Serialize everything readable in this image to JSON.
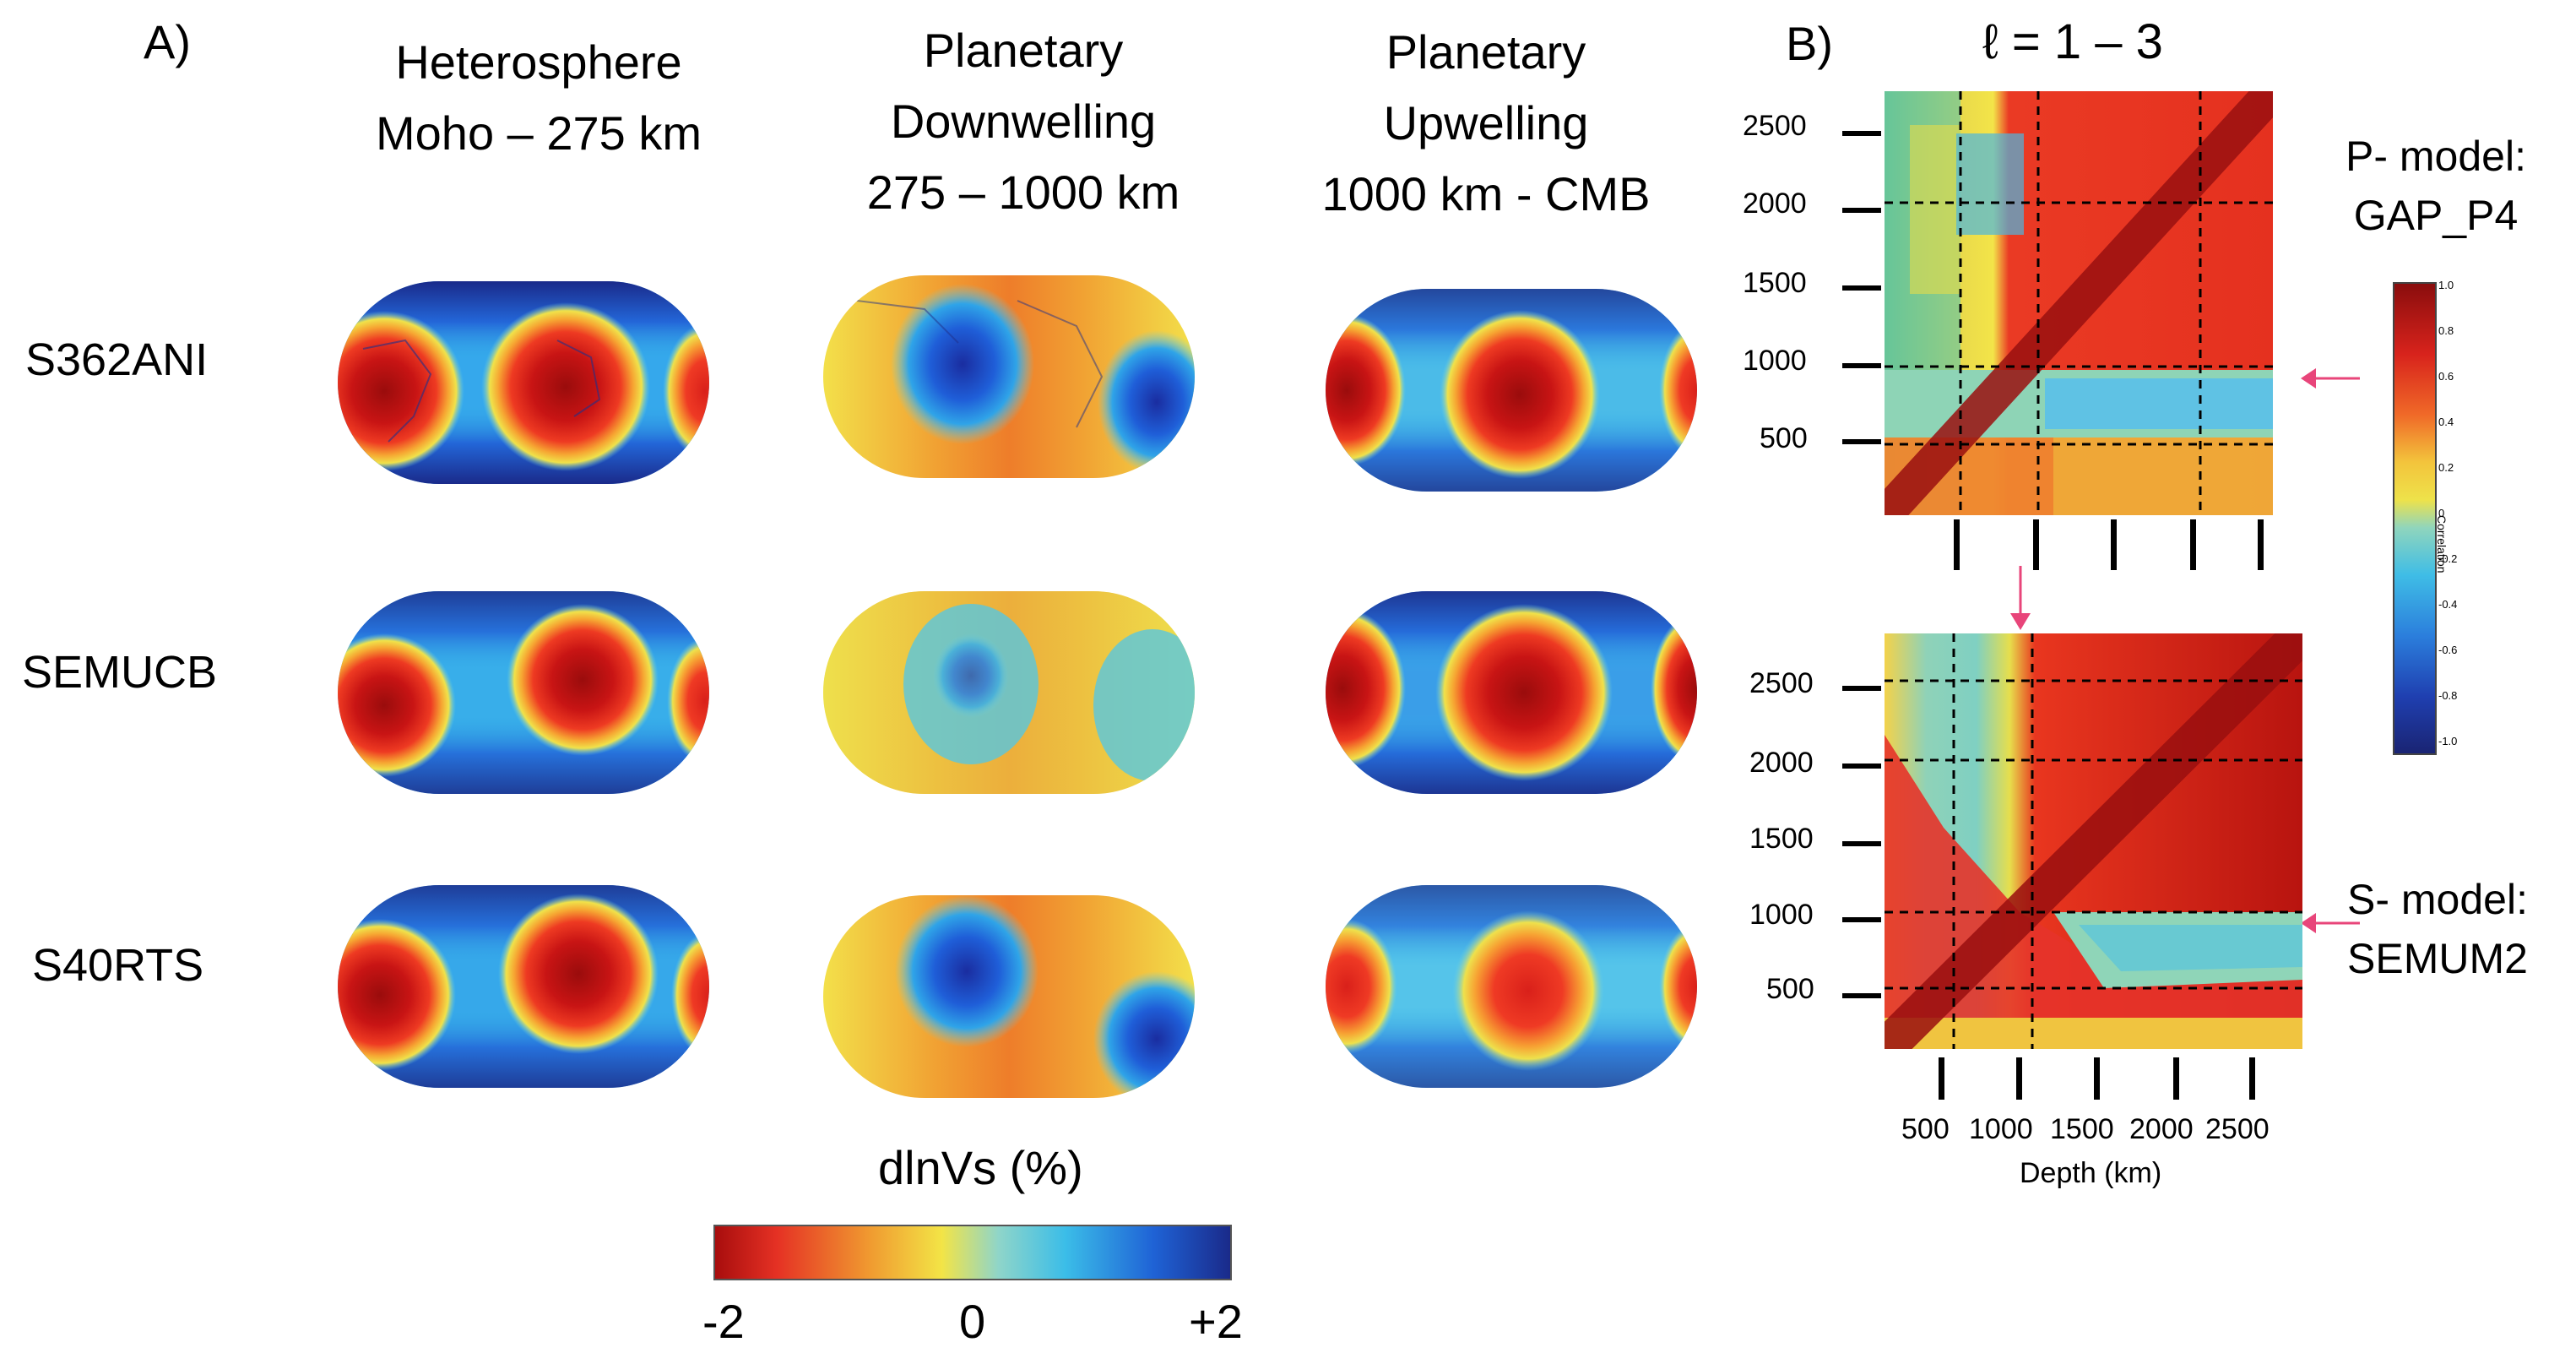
{
  "panel_a": {
    "label": "A)",
    "columns": [
      {
        "line1": "Heterosphere",
        "line2": "Moho – 275 km",
        "line3": ""
      },
      {
        "line1": "Planetary",
        "line2": "Downwelling",
        "line3": "275 – 1000 km"
      },
      {
        "line1": "Planetary",
        "line2": "Upwelling",
        "line3": "1000 km - CMB"
      }
    ],
    "rows": [
      "S362ANI",
      "SEMUCB",
      "S40RTS"
    ],
    "colorbar": {
      "title": "dlnVs (%)",
      "tick_min": "-2",
      "tick_mid": "0",
      "tick_max": "+2",
      "colors": [
        "#b40f0f",
        "#e8302a",
        "#f2a62f",
        "#f4e33f",
        "#3fbde6",
        "#1b5fd6",
        "#1a2a8a"
      ]
    }
  },
  "panel_b": {
    "label": "B)",
    "title": "ℓ = 1 – 3",
    "top_model_label_line1": "P- model:",
    "top_model_label_line2": "GAP_P4",
    "bottom_model_label_line1": "S- model:",
    "bottom_model_label_line2": "SEMUM2",
    "y_ticks": [
      "2500",
      "2000",
      "1500",
      "1000",
      "500"
    ],
    "x_ticks": [
      "500",
      "1000",
      "1500",
      "2000",
      "2500"
    ],
    "x_label": "Depth (km)",
    "colorbar_ticks": [
      "1.0",
      "0.8",
      "0.6",
      "0.4",
      "0.2",
      "0",
      "-0.2",
      "-0.4",
      "-0.6",
      "-0.8",
      "-1.0"
    ],
    "colorbar_label": "Correlation"
  }
}
